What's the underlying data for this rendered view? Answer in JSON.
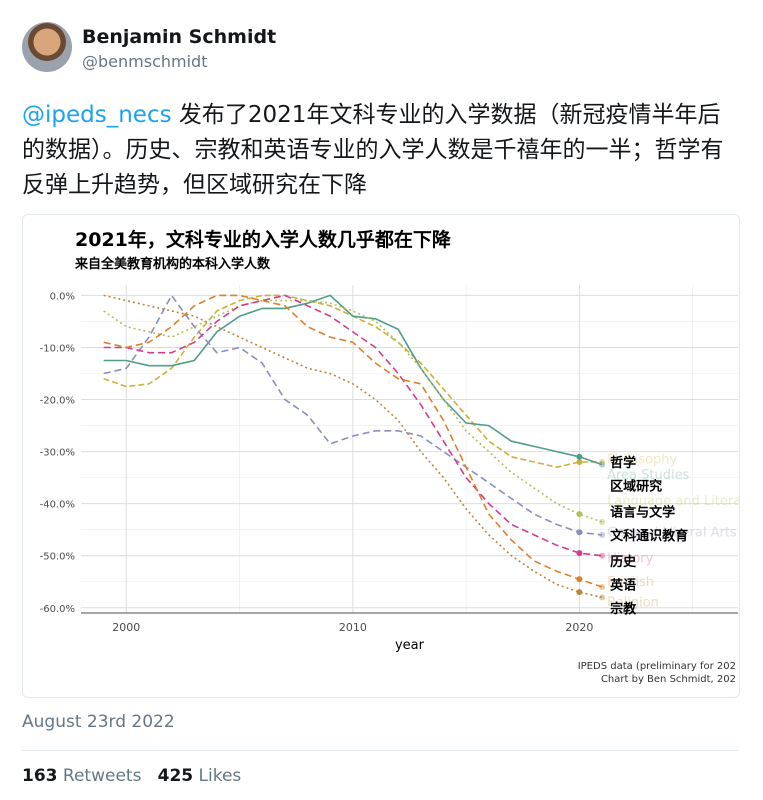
{
  "user": {
    "name": "Benjamin Schmidt",
    "handle": "@benmschmidt"
  },
  "tweet": {
    "mention": "@ipeds_necs",
    "text": " 发布了2021年文科专业的入学数据（新冠疫情半年后的数据）。历史、宗教和英语专业的入学人数是千禧年的一半；哲学有反弹上升趋势，但区域研究在下降"
  },
  "chart_data": {
    "type": "line",
    "title": "2021年，文科专业的入学人数几乎都在下降",
    "subtitle": "来自全美教育机构的本科入学人数",
    "xlabel": "year",
    "ylabel": "",
    "xlim": [
      1998,
      2027
    ],
    "ylim": [
      -61,
      2
    ],
    "x_ticks": [
      2000,
      2010,
      2020
    ],
    "y_ticks": [
      0,
      -10,
      -20,
      -30,
      -40,
      -50,
      -60
    ],
    "y_tick_labels": [
      "0.0%",
      "-10.0%",
      "-20.0%",
      "-30.0%",
      "-40.0%",
      "-50.0%",
      "-60.0%"
    ],
    "grid": true,
    "caption": [
      "IPEDS data (preliminary for 202",
      "Chart by Ben Schmidt, 202"
    ],
    "series": [
      {
        "name": "哲学",
        "faded_label": "Philosophy",
        "color": "#c9b23a",
        "dash": "6,3",
        "x": [
          1999,
          2000,
          2001,
          2002,
          2003,
          2004,
          2005,
          2006,
          2007,
          2008,
          2009,
          2010,
          2011,
          2012,
          2013,
          2014,
          2015,
          2016,
          2017,
          2018,
          2019,
          2020,
          2021
        ],
        "y": [
          -16,
          -17.5,
          -17,
          -14,
          -8,
          -3,
          -1,
          0,
          0,
          -1,
          -2,
          -4,
          -6,
          -9,
          -13,
          -18,
          -23,
          -28,
          -31,
          -32,
          -33,
          -32,
          -32
        ]
      },
      {
        "name": "区域研究",
        "faded_label": "Area Studies",
        "color": "#4f9e8a",
        "dash": "",
        "x": [
          1999,
          2000,
          2001,
          2002,
          2003,
          2004,
          2005,
          2006,
          2007,
          2008,
          2009,
          2010,
          2011,
          2012,
          2013,
          2014,
          2015,
          2016,
          2017,
          2018,
          2019,
          2020,
          2021
        ],
        "y": [
          -12.5,
          -12.5,
          -13.5,
          -13.5,
          -12.5,
          -7,
          -4,
          -2.5,
          -2.5,
          -1.5,
          0,
          -4,
          -4.5,
          -6.5,
          -14,
          -20,
          -24.5,
          -25,
          -28,
          -29,
          -30,
          -31,
          -32.5
        ]
      },
      {
        "name": "语言与文学",
        "faded_label": "Language and Literature",
        "color": "#b2c25a",
        "dash": "2,3",
        "x": [
          1999,
          2000,
          2001,
          2002,
          2003,
          2004,
          2005,
          2006,
          2007,
          2008,
          2009,
          2010,
          2011,
          2012,
          2013,
          2014,
          2015,
          2016,
          2017,
          2018,
          2019,
          2020,
          2021
        ],
        "y": [
          -3,
          -6,
          -7,
          -8,
          -6,
          -4,
          -2,
          -1,
          -1,
          -1,
          -1.5,
          -3,
          -5,
          -9,
          -14,
          -20,
          -26,
          -30,
          -34,
          -37,
          -40,
          -42,
          -43.5
        ]
      },
      {
        "name": "文科通识教育",
        "faded_label": "General Liberal Arts",
        "color": "#8b8fc0",
        "dash": "7,4",
        "x": [
          1999,
          2000,
          2001,
          2002,
          2003,
          2004,
          2005,
          2006,
          2007,
          2008,
          2009,
          2010,
          2011,
          2012,
          2013,
          2014,
          2015,
          2016,
          2017,
          2018,
          2019,
          2020,
          2021
        ],
        "y": [
          -15,
          -14,
          -8,
          0,
          -6,
          -11,
          -10,
          -13,
          -20,
          -23,
          -28.5,
          -27,
          -26,
          -26,
          -27,
          -30,
          -33,
          -36,
          -39,
          -42,
          -44,
          -45.5,
          -46
        ]
      },
      {
        "name": "历史",
        "faded_label": "History",
        "color": "#d63a8c",
        "dash": "7,4",
        "x": [
          1999,
          2000,
          2001,
          2002,
          2003,
          2004,
          2005,
          2006,
          2007,
          2008,
          2009,
          2010,
          2011,
          2012,
          2013,
          2014,
          2015,
          2016,
          2017,
          2018,
          2019,
          2020,
          2021
        ],
        "y": [
          -10,
          -10,
          -11,
          -11,
          -9,
          -5,
          -2,
          -1,
          0,
          -2,
          -4,
          -7,
          -10,
          -15,
          -21,
          -28,
          -35,
          -40,
          -44,
          -46,
          -48,
          -49.5,
          -50
        ]
      },
      {
        "name": "英语",
        "faded_label": "English",
        "color": "#d9822b",
        "dash": "7,4",
        "x": [
          1999,
          2000,
          2001,
          2002,
          2003,
          2004,
          2005,
          2006,
          2007,
          2008,
          2009,
          2010,
          2011,
          2012,
          2013,
          2014,
          2015,
          2016,
          2017,
          2018,
          2019,
          2020,
          2021
        ],
        "y": [
          -9,
          -10,
          -9,
          -6,
          -2,
          0,
          0,
          -1,
          -2,
          -6,
          -8,
          -9,
          -13,
          -16,
          -17,
          -24,
          -33,
          -42,
          -47,
          -51,
          -53,
          -54.5,
          -56
        ]
      },
      {
        "name": "宗教",
        "faded_label": "Religion",
        "color": "#b88a3a",
        "dash": "2,3",
        "x": [
          1999,
          2000,
          2001,
          2002,
          2003,
          2004,
          2005,
          2006,
          2007,
          2008,
          2009,
          2010,
          2011,
          2012,
          2013,
          2014,
          2015,
          2016,
          2017,
          2018,
          2019,
          2020,
          2021
        ],
        "y": [
          0,
          -1,
          -2,
          -3,
          -4,
          -6,
          -8,
          -10,
          -12,
          -14,
          -15,
          -17,
          -20,
          -24,
          -30,
          -35,
          -41,
          -46,
          -50,
          -53,
          -55.5,
          -57,
          -58
        ]
      }
    ]
  },
  "footer": {
    "date": "August 23rd 2022",
    "retweets_count": "163",
    "retweets_label": " Retweets",
    "likes_count": "425",
    "likes_label": " Likes"
  }
}
